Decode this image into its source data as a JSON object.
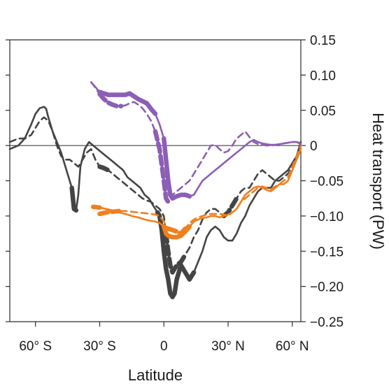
{
  "chart_data": {
    "type": "line",
    "title": "",
    "xlabel": "Latitude",
    "ylabel": "Heat transport (PW)",
    "xlim": [
      -72,
      64
    ],
    "ylim": [
      -0.25,
      0.15
    ],
    "x_ticks": [
      {
        "value": -60,
        "label": "60° S"
      },
      {
        "value": -30,
        "label": "30° S"
      },
      {
        "value": 0,
        "label": "0"
      },
      {
        "value": 30,
        "label": "30° N"
      },
      {
        "value": 60,
        "label": "60° N"
      }
    ],
    "y_ticks": [
      {
        "value": 0.15,
        "label": "0.15"
      },
      {
        "value": 0.1,
        "label": "0.10"
      },
      {
        "value": 0.05,
        "label": "0.05"
      },
      {
        "value": 0,
        "label": "0"
      },
      {
        "value": -0.05,
        "label": "−0.05"
      },
      {
        "value": -0.1,
        "label": "−0.10"
      },
      {
        "value": -0.15,
        "label": "−0.15"
      },
      {
        "value": -0.2,
        "label": "−0.20"
      },
      {
        "value": -0.25,
        "label": "−0.25"
      }
    ],
    "y_axis_side": "right",
    "zero_line": true,
    "grid": false,
    "series": [
      {
        "color": "#444444",
        "dash": "none",
        "x": [
          -72,
          -68,
          -65,
          -62,
          -60,
          -58,
          -56,
          -55,
          -54,
          -52,
          -50,
          -48,
          -46,
          -44,
          -43,
          -42,
          -41,
          -40,
          -39,
          -37,
          -35,
          -33,
          -31,
          -29,
          -27,
          -25,
          -23,
          -21,
          -19,
          -17,
          -15,
          -13,
          -11,
          -9,
          -7,
          -5,
          -3,
          -2,
          -1,
          0,
          1,
          2,
          3,
          4,
          5,
          6,
          7,
          8,
          10,
          12,
          13,
          14,
          16,
          18,
          20,
          22,
          24,
          26,
          28,
          30,
          32,
          34,
          36,
          38,
          40,
          42,
          44,
          46,
          48,
          50,
          52,
          54,
          56,
          58,
          60,
          62,
          63,
          64
        ],
        "y": [
          -0.005,
          0.0,
          0.01,
          0.03,
          0.045,
          0.053,
          0.055,
          0.052,
          0.04,
          0.02,
          0.005,
          -0.01,
          -0.03,
          -0.05,
          -0.06,
          -0.09,
          -0.092,
          -0.07,
          -0.03,
          -0.005,
          0.005,
          0.0,
          -0.005,
          -0.01,
          -0.015,
          -0.02,
          -0.025,
          -0.03,
          -0.035,
          -0.045,
          -0.05,
          -0.055,
          -0.06,
          -0.07,
          -0.075,
          -0.085,
          -0.095,
          -0.1,
          -0.12,
          -0.15,
          -0.175,
          -0.19,
          -0.21,
          -0.215,
          -0.21,
          -0.19,
          -0.18,
          -0.17,
          -0.18,
          -0.19,
          -0.185,
          -0.18,
          -0.165,
          -0.15,
          -0.13,
          -0.12,
          -0.115,
          -0.12,
          -0.13,
          -0.135,
          -0.135,
          -0.125,
          -0.11,
          -0.1,
          -0.085,
          -0.075,
          -0.065,
          -0.06,
          -0.06,
          -0.06,
          -0.05,
          -0.045,
          -0.04,
          -0.035,
          -0.025,
          -0.015,
          -0.005,
          0.005
        ],
        "thick_ranges": [
          [
            -43,
            -41
          ],
          [
            -3,
            14
          ]
        ]
      },
      {
        "color": "#444444",
        "dash": "dashed",
        "x": [
          -72,
          -68,
          -65,
          -62,
          -60,
          -58,
          -56,
          -54,
          -52,
          -50,
          -48,
          -46,
          -44,
          -42,
          -40,
          -38,
          -36,
          -34,
          -32,
          -30,
          -28,
          -26,
          -24,
          -22,
          -20,
          -18,
          -16,
          -14,
          -12,
          -10,
          -8,
          -6,
          -4,
          -2,
          0,
          1,
          2,
          3,
          4,
          5,
          6,
          8,
          10,
          12,
          14,
          16,
          18,
          20,
          22,
          24,
          26,
          28,
          30,
          32,
          34,
          36,
          38,
          40,
          42,
          44,
          46,
          48,
          50,
          52,
          54,
          56,
          58,
          60,
          62,
          64
        ],
        "y": [
          0.005,
          0.01,
          0.01,
          0.015,
          0.025,
          0.035,
          0.04,
          0.035,
          0.02,
          0.0,
          -0.015,
          -0.02,
          -0.02,
          -0.025,
          -0.03,
          -0.02,
          -0.01,
          -0.005,
          -0.02,
          -0.03,
          -0.032,
          -0.035,
          -0.04,
          -0.045,
          -0.05,
          -0.055,
          -0.06,
          -0.065,
          -0.07,
          -0.075,
          -0.078,
          -0.08,
          -0.085,
          -0.09,
          -0.1,
          -0.125,
          -0.15,
          -0.17,
          -0.18,
          -0.175,
          -0.17,
          -0.165,
          -0.155,
          -0.145,
          -0.13,
          -0.12,
          -0.105,
          -0.095,
          -0.09,
          -0.09,
          -0.095,
          -0.1,
          -0.095,
          -0.085,
          -0.075,
          -0.065,
          -0.06,
          -0.06,
          -0.05,
          -0.04,
          -0.035,
          -0.04,
          -0.045,
          -0.05,
          -0.05,
          -0.045,
          -0.04,
          -0.03,
          -0.02,
          -0.005
        ],
        "thick_ranges": [
          [
            -30,
            -25
          ],
          [
            1,
            10
          ],
          [
            28,
            35
          ]
        ]
      },
      {
        "color": "#f07f1e",
        "dash": "none",
        "x": [
          -33,
          -30,
          -27,
          -24,
          -21,
          -18,
          -15,
          -12,
          -9,
          -6,
          -4,
          -2,
          0,
          1,
          2,
          4,
          6,
          8,
          10,
          12,
          14,
          16,
          18,
          20,
          22,
          24,
          26,
          28,
          30,
          32,
          34,
          36,
          38,
          40,
          42,
          44,
          46,
          48,
          50,
          52,
          54,
          56,
          58,
          60,
          62,
          64
        ],
        "y": [
          -0.087,
          -0.088,
          -0.09,
          -0.092,
          -0.095,
          -0.097,
          -0.1,
          -0.102,
          -0.105,
          -0.107,
          -0.108,
          -0.11,
          -0.115,
          -0.125,
          -0.128,
          -0.13,
          -0.13,
          -0.128,
          -0.122,
          -0.115,
          -0.108,
          -0.105,
          -0.103,
          -0.102,
          -0.1,
          -0.1,
          -0.102,
          -0.1,
          -0.098,
          -0.095,
          -0.09,
          -0.08,
          -0.07,
          -0.065,
          -0.06,
          -0.058,
          -0.06,
          -0.063,
          -0.065,
          -0.06,
          -0.055,
          -0.055,
          -0.05,
          -0.035,
          -0.02,
          -0.005
        ],
        "thick_ranges": [
          [
            -33,
            -30
          ],
          [
            0,
            12
          ]
        ]
      },
      {
        "color": "#f07f1e",
        "dash": "dashed",
        "x": [
          -30,
          -27,
          -24,
          -21,
          -18,
          -15,
          -12,
          -9,
          -6,
          -4,
          -2,
          0,
          2,
          4,
          6,
          8,
          10,
          12,
          14,
          16,
          18,
          20,
          22,
          24,
          26,
          28,
          30,
          32,
          34,
          36,
          38,
          40,
          42,
          44,
          46,
          48,
          50,
          52,
          54,
          56,
          58,
          60,
          62,
          64
        ],
        "y": [
          -0.097,
          -0.095,
          -0.094,
          -0.093,
          -0.093,
          -0.094,
          -0.095,
          -0.096,
          -0.097,
          -0.098,
          -0.1,
          -0.108,
          -0.118,
          -0.12,
          -0.122,
          -0.125,
          -0.118,
          -0.11,
          -0.105,
          -0.102,
          -0.1,
          -0.098,
          -0.097,
          -0.097,
          -0.097,
          -0.098,
          -0.1,
          -0.095,
          -0.09,
          -0.08,
          -0.075,
          -0.07,
          -0.065,
          -0.06,
          -0.058,
          -0.06,
          -0.062,
          -0.058,
          -0.055,
          -0.05,
          -0.045,
          -0.03,
          -0.015,
          0.0
        ],
        "thick_ranges": [
          [
            -30,
            -20
          ],
          [
            2,
            10
          ]
        ]
      },
      {
        "color": "#8d5eb5",
        "dash": "none",
        "x": [
          -34,
          -32,
          -30,
          -28,
          -26,
          -24,
          -22,
          -20,
          -18,
          -16,
          -14,
          -12,
          -10,
          -8,
          -6,
          -4,
          -2,
          0,
          1,
          2,
          3,
          4,
          6,
          8,
          10,
          12,
          14,
          16,
          18,
          20,
          22,
          24,
          26,
          28,
          30,
          32,
          34,
          36,
          38,
          40,
          42,
          44,
          46,
          48,
          50,
          52,
          54,
          56,
          58,
          60,
          62,
          64
        ],
        "y": [
          0.09,
          0.083,
          0.076,
          0.074,
          0.072,
          0.072,
          0.072,
          0.072,
          0.072,
          0.074,
          0.07,
          0.066,
          0.063,
          0.06,
          0.052,
          0.045,
          0.03,
          0.01,
          -0.02,
          -0.05,
          -0.07,
          -0.075,
          -0.072,
          -0.07,
          -0.07,
          -0.072,
          -0.07,
          -0.06,
          -0.05,
          -0.045,
          -0.04,
          -0.035,
          -0.03,
          -0.025,
          -0.02,
          -0.015,
          -0.01,
          -0.005,
          0.0,
          0.005,
          0.008,
          0.005,
          0.003,
          0.002,
          0.001,
          0.001,
          0.002,
          0.003,
          0.004,
          0.005,
          0.005,
          0.002
        ],
        "thick_ranges": [
          [
            -30,
            -4
          ],
          [
            0,
            12
          ]
        ]
      },
      {
        "color": "#8d5eb5",
        "dash": "dashed",
        "x": [
          -34,
          -32,
          -30,
          -28,
          -26,
          -24,
          -22,
          -20,
          -18,
          -16,
          -14,
          -12,
          -10,
          -8,
          -6,
          -4,
          -2,
          0,
          1,
          2,
          3,
          4,
          6,
          8,
          10,
          12,
          14,
          16,
          18,
          20,
          22,
          24,
          26,
          28,
          30,
          32,
          34,
          36,
          38,
          40,
          42,
          44,
          46,
          48,
          50,
          52,
          54,
          56,
          58,
          60,
          62,
          64
        ],
        "y": [
          0.09,
          0.082,
          0.073,
          0.066,
          0.061,
          0.058,
          0.056,
          0.056,
          0.057,
          0.06,
          0.062,
          0.058,
          0.053,
          0.045,
          0.035,
          0.02,
          -0.005,
          -0.05,
          -0.075,
          -0.08,
          -0.078,
          -0.07,
          -0.065,
          -0.06,
          -0.055,
          -0.05,
          -0.04,
          -0.03,
          -0.02,
          -0.01,
          0.0,
          0.001,
          -0.005,
          -0.01,
          -0.008,
          0.0,
          0.01,
          0.015,
          0.02,
          0.012,
          0.005,
          0.002,
          0.001,
          0.0,
          0.0,
          0.001,
          0.002,
          0.003,
          0.004,
          0.005,
          0.005,
          0.003
        ],
        "thick_ranges": [
          [
            -30,
            -20
          ],
          [
            -4,
            3
          ]
        ]
      }
    ]
  }
}
